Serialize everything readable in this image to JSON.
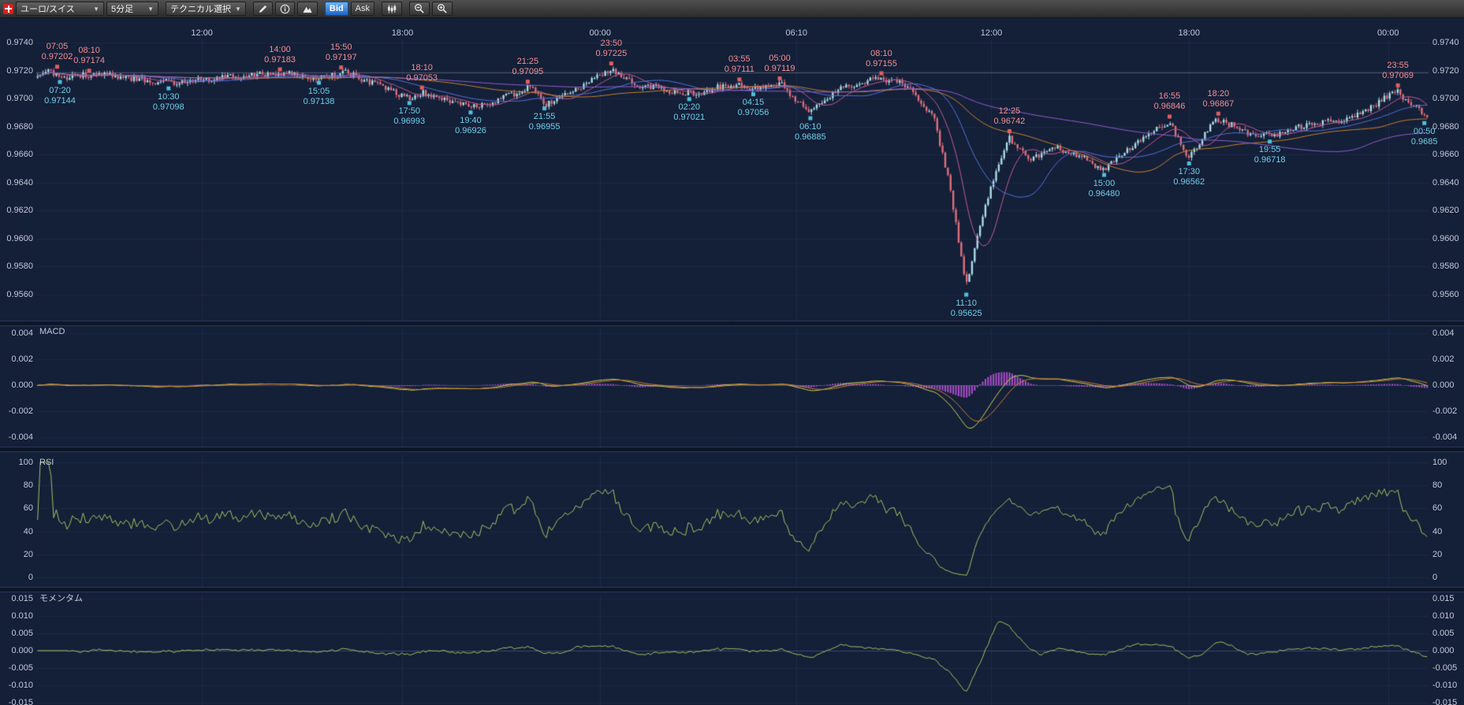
{
  "toolbar": {
    "pair_select": "ユーロ/スイス",
    "timeframe_select": "5分足",
    "technical_select": "テクニカル選択",
    "bid_button": "Bid",
    "ask_button": "Ask",
    "bid_active_color": "#1e66c8"
  },
  "chart_data": {
    "type": "candlestick",
    "instrument": "ユーロ/スイス",
    "interval": "5分足",
    "price_side": "Bid",
    "x_ticks": [
      {
        "label": "12:00",
        "f": 0.119
      },
      {
        "label": "18:00",
        "f": 0.263
      },
      {
        "label": "00:00",
        "f": 0.405
      },
      {
        "label": "06:10",
        "f": 0.546
      },
      {
        "label": "12:00",
        "f": 0.686
      },
      {
        "label": "18:00",
        "f": 0.828
      },
      {
        "label": "00:00",
        "f": 0.971
      }
    ],
    "panels": {
      "price": {
        "y_ticks": [
          "0.9740",
          "0.9720",
          "0.9700",
          "0.9680",
          "0.9660",
          "0.9640",
          "0.9620",
          "0.9600",
          "0.9580",
          "0.9560"
        ],
        "y_top": 0.974,
        "y_bottom": 0.956,
        "ref_line": 0.97185,
        "candles": 520,
        "ma_windows": [
          12,
          30,
          75,
          150
        ],
        "anchors": [
          [
            0,
            0.9715
          ],
          [
            0.008,
            0.97195
          ],
          [
            0.017,
            0.9715
          ],
          [
            0.039,
            0.97172
          ],
          [
            0.059,
            0.97152
          ],
          [
            0.095,
            0.97108
          ],
          [
            0.121,
            0.9714
          ],
          [
            0.175,
            0.97178
          ],
          [
            0.203,
            0.97142
          ],
          [
            0.219,
            0.9719
          ],
          [
            0.24,
            0.97122
          ],
          [
            0.268,
            0.97
          ],
          [
            0.277,
            0.97048
          ],
          [
            0.295,
            0.9699
          ],
          [
            0.312,
            0.96938
          ],
          [
            0.336,
            0.97
          ],
          [
            0.353,
            0.97088
          ],
          [
            0.365,
            0.96962
          ],
          [
            0.387,
            0.97058
          ],
          [
            0.413,
            0.97212
          ],
          [
            0.427,
            0.9711
          ],
          [
            0.469,
            0.97032
          ],
          [
            0.505,
            0.97102
          ],
          [
            0.515,
            0.97062
          ],
          [
            0.534,
            0.9711
          ],
          [
            0.546,
            0.9699
          ],
          [
            0.556,
            0.96898
          ],
          [
            0.574,
            0.97055
          ],
          [
            0.607,
            0.97148
          ],
          [
            0.628,
            0.97078
          ],
          [
            0.645,
            0.9685
          ],
          [
            0.656,
            0.9642
          ],
          [
            0.668,
            0.9564
          ],
          [
            0.679,
            0.9614
          ],
          [
            0.699,
            0.96728
          ],
          [
            0.713,
            0.9656
          ],
          [
            0.733,
            0.96655
          ],
          [
            0.75,
            0.9658
          ],
          [
            0.767,
            0.96492
          ],
          [
            0.792,
            0.967
          ],
          [
            0.814,
            0.96838
          ],
          [
            0.828,
            0.96578
          ],
          [
            0.849,
            0.96858
          ],
          [
            0.869,
            0.96762
          ],
          [
            0.886,
            0.96726
          ],
          [
            0.914,
            0.96808
          ],
          [
            0.948,
            0.96868
          ],
          [
            0.978,
            0.97058
          ],
          [
            1,
            0.96862
          ]
        ],
        "annotations": [
          {
            "time": "07:05",
            "price": "0.97202",
            "kind": "high",
            "f": 0.015
          },
          {
            "time": "08:10",
            "price": "0.97174",
            "kind": "high",
            "f": 0.038
          },
          {
            "time": "07:20",
            "price": "0.97144",
            "kind": "low",
            "f": 0.017
          },
          {
            "time": "10:30",
            "price": "0.97098",
            "kind": "low",
            "f": 0.095
          },
          {
            "time": "14:00",
            "price": "0.97183",
            "kind": "high",
            "f": 0.175
          },
          {
            "time": "15:50",
            "price": "0.97197",
            "kind": "high",
            "f": 0.219
          },
          {
            "time": "15:05",
            "price": "0.97138",
            "kind": "low",
            "f": 0.203
          },
          {
            "time": "18:10",
            "price": "0.97053",
            "kind": "high",
            "f": 0.277
          },
          {
            "time": "17:50",
            "price": "0.96993",
            "kind": "low",
            "f": 0.268
          },
          {
            "time": "19:40",
            "price": "0.96926",
            "kind": "low",
            "f": 0.312
          },
          {
            "time": "21:25",
            "price": "0.97095",
            "kind": "high",
            "f": 0.353
          },
          {
            "time": "21:55",
            "price": "0.96955",
            "kind": "low",
            "f": 0.365
          },
          {
            "time": "23:50",
            "price": "0.97225",
            "kind": "high",
            "f": 0.413
          },
          {
            "time": "02:20",
            "price": "0.97021",
            "kind": "low",
            "f": 0.469
          },
          {
            "time": "03:55",
            "price": "0.97111",
            "kind": "high",
            "f": 0.505
          },
          {
            "time": "04:15",
            "price": "0.97056",
            "kind": "low",
            "f": 0.515
          },
          {
            "time": "05:00",
            "price": "0.97119",
            "kind": "high",
            "f": 0.534
          },
          {
            "time": "06:10",
            "price": "0.96885",
            "kind": "low",
            "f": 0.556
          },
          {
            "time": "08:10",
            "price": "0.97155",
            "kind": "high",
            "f": 0.607
          },
          {
            "time": "11:10",
            "price": "0.95625",
            "kind": "low",
            "f": 0.668
          },
          {
            "time": "12:25",
            "price": "0.96742",
            "kind": "high",
            "f": 0.699
          },
          {
            "time": "15:00",
            "price": "0.96480",
            "kind": "low",
            "f": 0.767
          },
          {
            "time": "16:55",
            "price": "0.96846",
            "kind": "high",
            "f": 0.814
          },
          {
            "time": "17:30",
            "price": "0.96562",
            "kind": "low",
            "f": 0.828
          },
          {
            "time": "18:20",
            "price": "0.96867",
            "kind": "high",
            "f": 0.849
          },
          {
            "time": "19:55",
            "price": "0.96718",
            "kind": "low",
            "f": 0.886
          },
          {
            "time": "23:55",
            "price": "0.97069",
            "kind": "high",
            "f": 0.978
          },
          {
            "time": "00:50",
            "price": "0.9685",
            "kind": "low",
            "f": 0.997
          }
        ]
      },
      "macd": {
        "title": "MACD",
        "y_ticks": [
          "0.004",
          "0.002",
          "0.000",
          "-0.002",
          "-0.004"
        ],
        "y_top": 0.004,
        "y_bottom": -0.004,
        "fast": 12,
        "slow": 26,
        "signal": 9
      },
      "rsi": {
        "title": "RSI",
        "y_ticks": [
          "100",
          "80",
          "60",
          "40",
          "20",
          "0"
        ],
        "y_top": 100,
        "y_bottom": 0,
        "period": 14
      },
      "momentum": {
        "title": "モメンタム",
        "y_ticks": [
          "0.015",
          "0.010",
          "0.005",
          "0.000",
          "-0.005",
          "-0.010",
          "-0.015"
        ],
        "y_top": 0.015,
        "y_bottom": -0.015,
        "period": 12
      }
    },
    "colors": {
      "background": "#141f38",
      "panel_gap": "#0c1526",
      "grid": "#27335a",
      "zero_line": "#3c4c78",
      "axis_text": "#c2cad9",
      "up_candle": "#aadce8",
      "down_candle": "#de6f7c",
      "ma": [
        "#c05a96",
        "#4f74d8",
        "#c8832c",
        "#8f5fd0"
      ],
      "macd_line": "#c9d44f",
      "macd_signal": "#cc7f33",
      "macd_hist": "#a94fc9",
      "oscillator_line": "#9cc45f",
      "annotation_high": "#f29090",
      "annotation_low": "#6fd0e8",
      "marker_high": "#e06060",
      "marker_low": "#50c0e0"
    }
  }
}
